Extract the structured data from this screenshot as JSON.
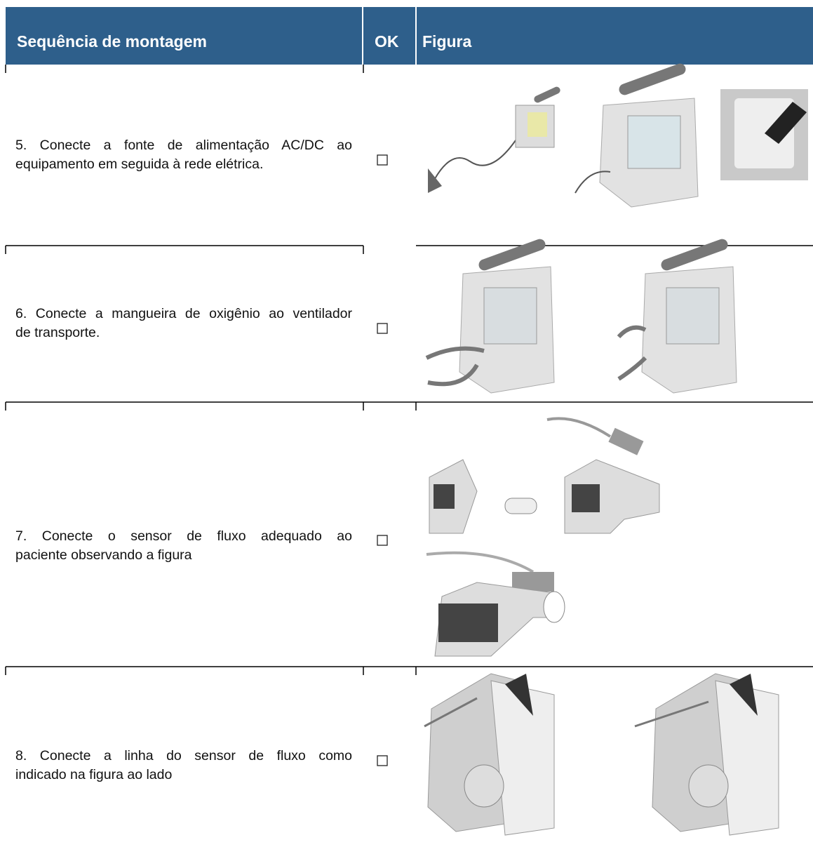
{
  "table": {
    "header": [
      "Sequência de montagem",
      "OK",
      "Figura"
    ],
    "rows": [
      {
        "lines": [
          "5.  Conecte a fonte de alimentação AC/DC ao",
          "equipamento em seguida à rede elétrica."
        ]
      },
      {
        "lines": [
          "6.  Conecte a mangueira de oxigênio ao ventilador",
          "de transporte."
        ]
      },
      {
        "lines": [
          "7.   Conecte o sensor de fluxo adequado ao",
          "paciente observando a figura"
        ]
      },
      {
        "lines": [
          "8. Conecte a linha do sensor de fluxo como",
          "indicado na figura ao lado"
        ]
      }
    ]
  }
}
